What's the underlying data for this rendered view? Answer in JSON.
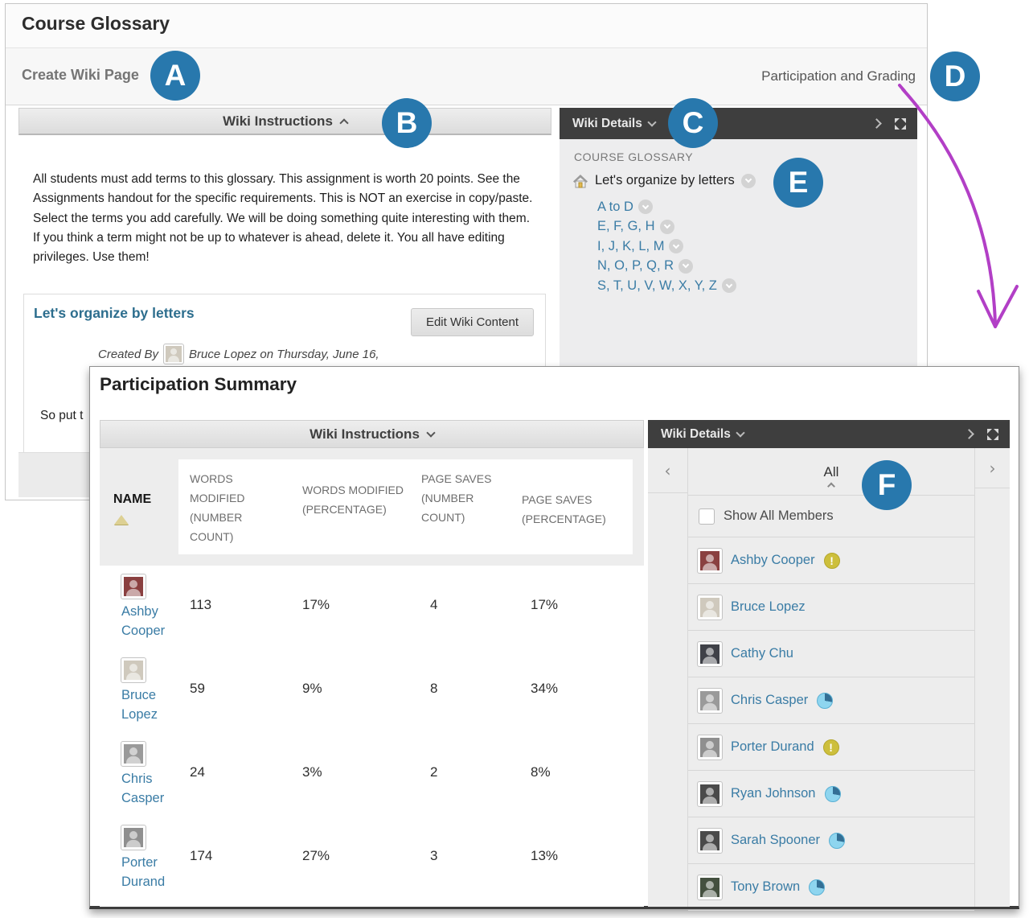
{
  "page": {
    "title": "Course Glossary",
    "action_bar": {
      "create_button": "Create Wiki Page",
      "participation_link": "Participation and Grading"
    },
    "wiki_instructions": {
      "title": "Wiki Instructions",
      "body": "All students must add terms to this glossary. This assignment is worth 20 points. See the Assignments handout for the specific requirements. This is NOT an exercise in copy/paste. Select the terms you add carefully. We will be doing something quite interesting with them. If you think a term might not be up to whatever is ahead, delete it. You all have editing privileges. Use them!"
    },
    "wiki_page": {
      "title": "Let's organize by letters",
      "edit_button": "Edit Wiki Content",
      "created_by_label": "Created By",
      "created_by_text": "Bruce Lopez on Thursday, June 16,",
      "body_fragment": "So put t"
    },
    "wiki_details": {
      "title": "Wiki Details",
      "section_label": "COURSE GLOSSARY",
      "root_page": "Let's organize by letters",
      "tree_pages": [
        "A to D",
        "E, F, G, H",
        "I, J, K, L, M",
        "N, O, P, Q, R",
        "S, T, U, V, W, X, Y, Z"
      ]
    }
  },
  "overlay": {
    "title": "Participation Summary",
    "wiki_instructions_title": "Wiki Instructions",
    "wiki_details_title": "Wiki Details",
    "table": {
      "name_header": "NAME",
      "columns": [
        "WORDS MODIFIED (NUMBER COUNT)",
        "WORDS MODIFIED (PERCENTAGE)",
        "PAGE SAVES (NUMBER COUNT)",
        "PAGE SAVES (PERCENTAGE)"
      ],
      "rows": [
        {
          "name": "Ashby Cooper",
          "avatar_color": "#8a4040",
          "values": [
            "113",
            "17%",
            "4",
            "17%"
          ]
        },
        {
          "name": "Bruce Lopez",
          "avatar_color": "#cfc9bd",
          "values": [
            "59",
            "9%",
            "8",
            "34%"
          ]
        },
        {
          "name": "Chris Casper",
          "avatar_color": "#9a9a9a",
          "values": [
            "24",
            "3%",
            "2",
            "8%"
          ]
        },
        {
          "name": "Porter Durand",
          "avatar_color": "#8f8f8f",
          "values": [
            "174",
            "27%",
            "3",
            "13%"
          ]
        }
      ]
    },
    "sidebar": {
      "group_selector": "All",
      "show_all_label": "Show All Members",
      "members": [
        {
          "name": "Ashby Cooper",
          "badge": "alert",
          "avatar_color": "#8a4040"
        },
        {
          "name": "Bruce Lopez",
          "badge": "none",
          "avatar_color": "#cfc9bd"
        },
        {
          "name": "Cathy Chu",
          "badge": "none",
          "avatar_color": "#3f4148"
        },
        {
          "name": "Chris Casper",
          "badge": "pie",
          "avatar_color": "#9a9a9a"
        },
        {
          "name": "Porter Durand",
          "badge": "alert",
          "avatar_color": "#8f8f8f"
        },
        {
          "name": "Ryan Johnson",
          "badge": "pie",
          "avatar_color": "#4a4a4a"
        },
        {
          "name": "Sarah Spooner",
          "badge": "pie",
          "avatar_color": "#4a4a4a"
        },
        {
          "name": "Tony Brown",
          "badge": "pie",
          "avatar_color": "#44503f"
        }
      ]
    }
  },
  "callouts": {
    "a": "A",
    "b": "B",
    "c": "C",
    "d": "D",
    "e": "E",
    "f": "F"
  },
  "badge_exclamation": "!",
  "colors": {
    "callout_blue": "#2878ad",
    "dark_bar": "#3e3e3e",
    "link_blue": "#3a7ca5",
    "page_heading_blue": "#2d6e8e",
    "arrow_purple": "#b23fc6",
    "badge_alert_yellow": "#cdbf3c",
    "badge_pie_blue": "#8ed5ef"
  }
}
